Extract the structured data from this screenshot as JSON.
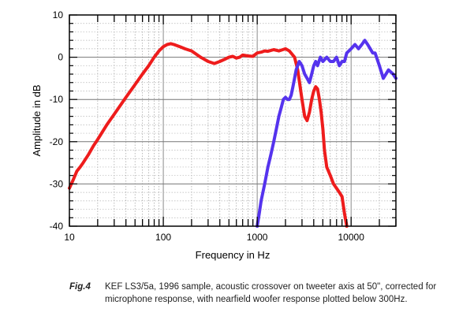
{
  "chart_data": {
    "type": "line",
    "xlabel": "Frequency in Hz",
    "ylabel": "Amplitude in dB",
    "xscale": "log",
    "xlim": [
      10,
      30000
    ],
    "ylim": [
      -40,
      10
    ],
    "grid": true,
    "x_tick_labels": [
      "10",
      "100",
      "1000",
      "10000"
    ],
    "x_tick_values": [
      10,
      100,
      1000,
      10000
    ],
    "y_tick_labels": [
      "10",
      "0",
      "-10",
      "-20",
      "-30",
      "-40"
    ],
    "y_tick_values": [
      10,
      0,
      -10,
      -20,
      -30,
      -40
    ],
    "colors": {
      "red_series": "#ee1c1c",
      "blue_series": "#5533ee"
    },
    "series": [
      {
        "color": "#ee1c1c",
        "x": [
          10,
          11,
          12,
          13,
          14,
          16,
          18,
          20,
          25,
          30,
          40,
          50,
          60,
          70,
          80,
          90,
          100,
          110,
          120,
          130,
          150,
          170,
          200,
          250,
          300,
          350,
          400,
          450,
          500,
          550,
          600,
          650,
          700,
          800,
          900,
          1000,
          1100,
          1200,
          1300,
          1500,
          1700,
          2000,
          2200,
          2500,
          2700,
          3000,
          3200,
          3400,
          3600,
          3800,
          4000,
          4200,
          4400,
          4600,
          4800,
          5000,
          5200,
          5500,
          6000,
          6500,
          7000,
          7500,
          8000,
          8500,
          9000
        ],
        "y": [
          -31,
          -29,
          -27,
          -26,
          -25,
          -23,
          -21,
          -19.5,
          -16,
          -13.5,
          -9.5,
          -6.5,
          -4,
          -2,
          0,
          1.5,
          2.5,
          3,
          3.2,
          3,
          2.5,
          2,
          1.5,
          0,
          -1,
          -1.5,
          -1,
          -0.5,
          0,
          0.2,
          -0.2,
          0,
          0.5,
          0.3,
          0.2,
          1,
          1.2,
          1.5,
          1.4,
          1.8,
          1.5,
          2,
          1.5,
          0,
          -3,
          -10,
          -14,
          -15,
          -13,
          -10,
          -8,
          -7,
          -7.5,
          -10,
          -13,
          -17,
          -22,
          -26,
          -28,
          -30,
          -31,
          -32,
          -33,
          -37,
          -40
        ]
      },
      {
        "color": "#5533ee",
        "x": [
          1000,
          1050,
          1100,
          1200,
          1300,
          1400,
          1500,
          1600,
          1700,
          1800,
          1900,
          2000,
          2100,
          2200,
          2300,
          2400,
          2500,
          2600,
          2700,
          2800,
          3000,
          3200,
          3400,
          3600,
          3800,
          4000,
          4200,
          4400,
          4700,
          5000,
          5500,
          6000,
          6500,
          7000,
          7500,
          8000,
          8500,
          9000,
          10000,
          11000,
          12000,
          13000,
          14000,
          15000,
          16000,
          17000,
          18000,
          20000,
          22000,
          25000,
          28000,
          30000
        ],
        "y": [
          -40,
          -37,
          -34,
          -30,
          -26,
          -23,
          -20,
          -17,
          -14,
          -12,
          -10,
          -9.5,
          -10,
          -10,
          -9,
          -7,
          -5,
          -3,
          -2,
          -1,
          -2,
          -4,
          -5,
          -6,
          -4,
          -2,
          -1,
          -2,
          0,
          -1,
          0,
          -1,
          -1,
          0,
          -2,
          -1,
          -1,
          1,
          2,
          3,
          2,
          3,
          4,
          3,
          2,
          1,
          1,
          -2,
          -5,
          -3,
          -4,
          -5
        ]
      }
    ]
  },
  "caption": {
    "label": "Fig.4",
    "text": "KEF LS3/5a, 1996 sample, acoustic crossover on tweeter axis at 50\", corrected for microphone response, with nearfield woofer response plotted below 300Hz."
  }
}
